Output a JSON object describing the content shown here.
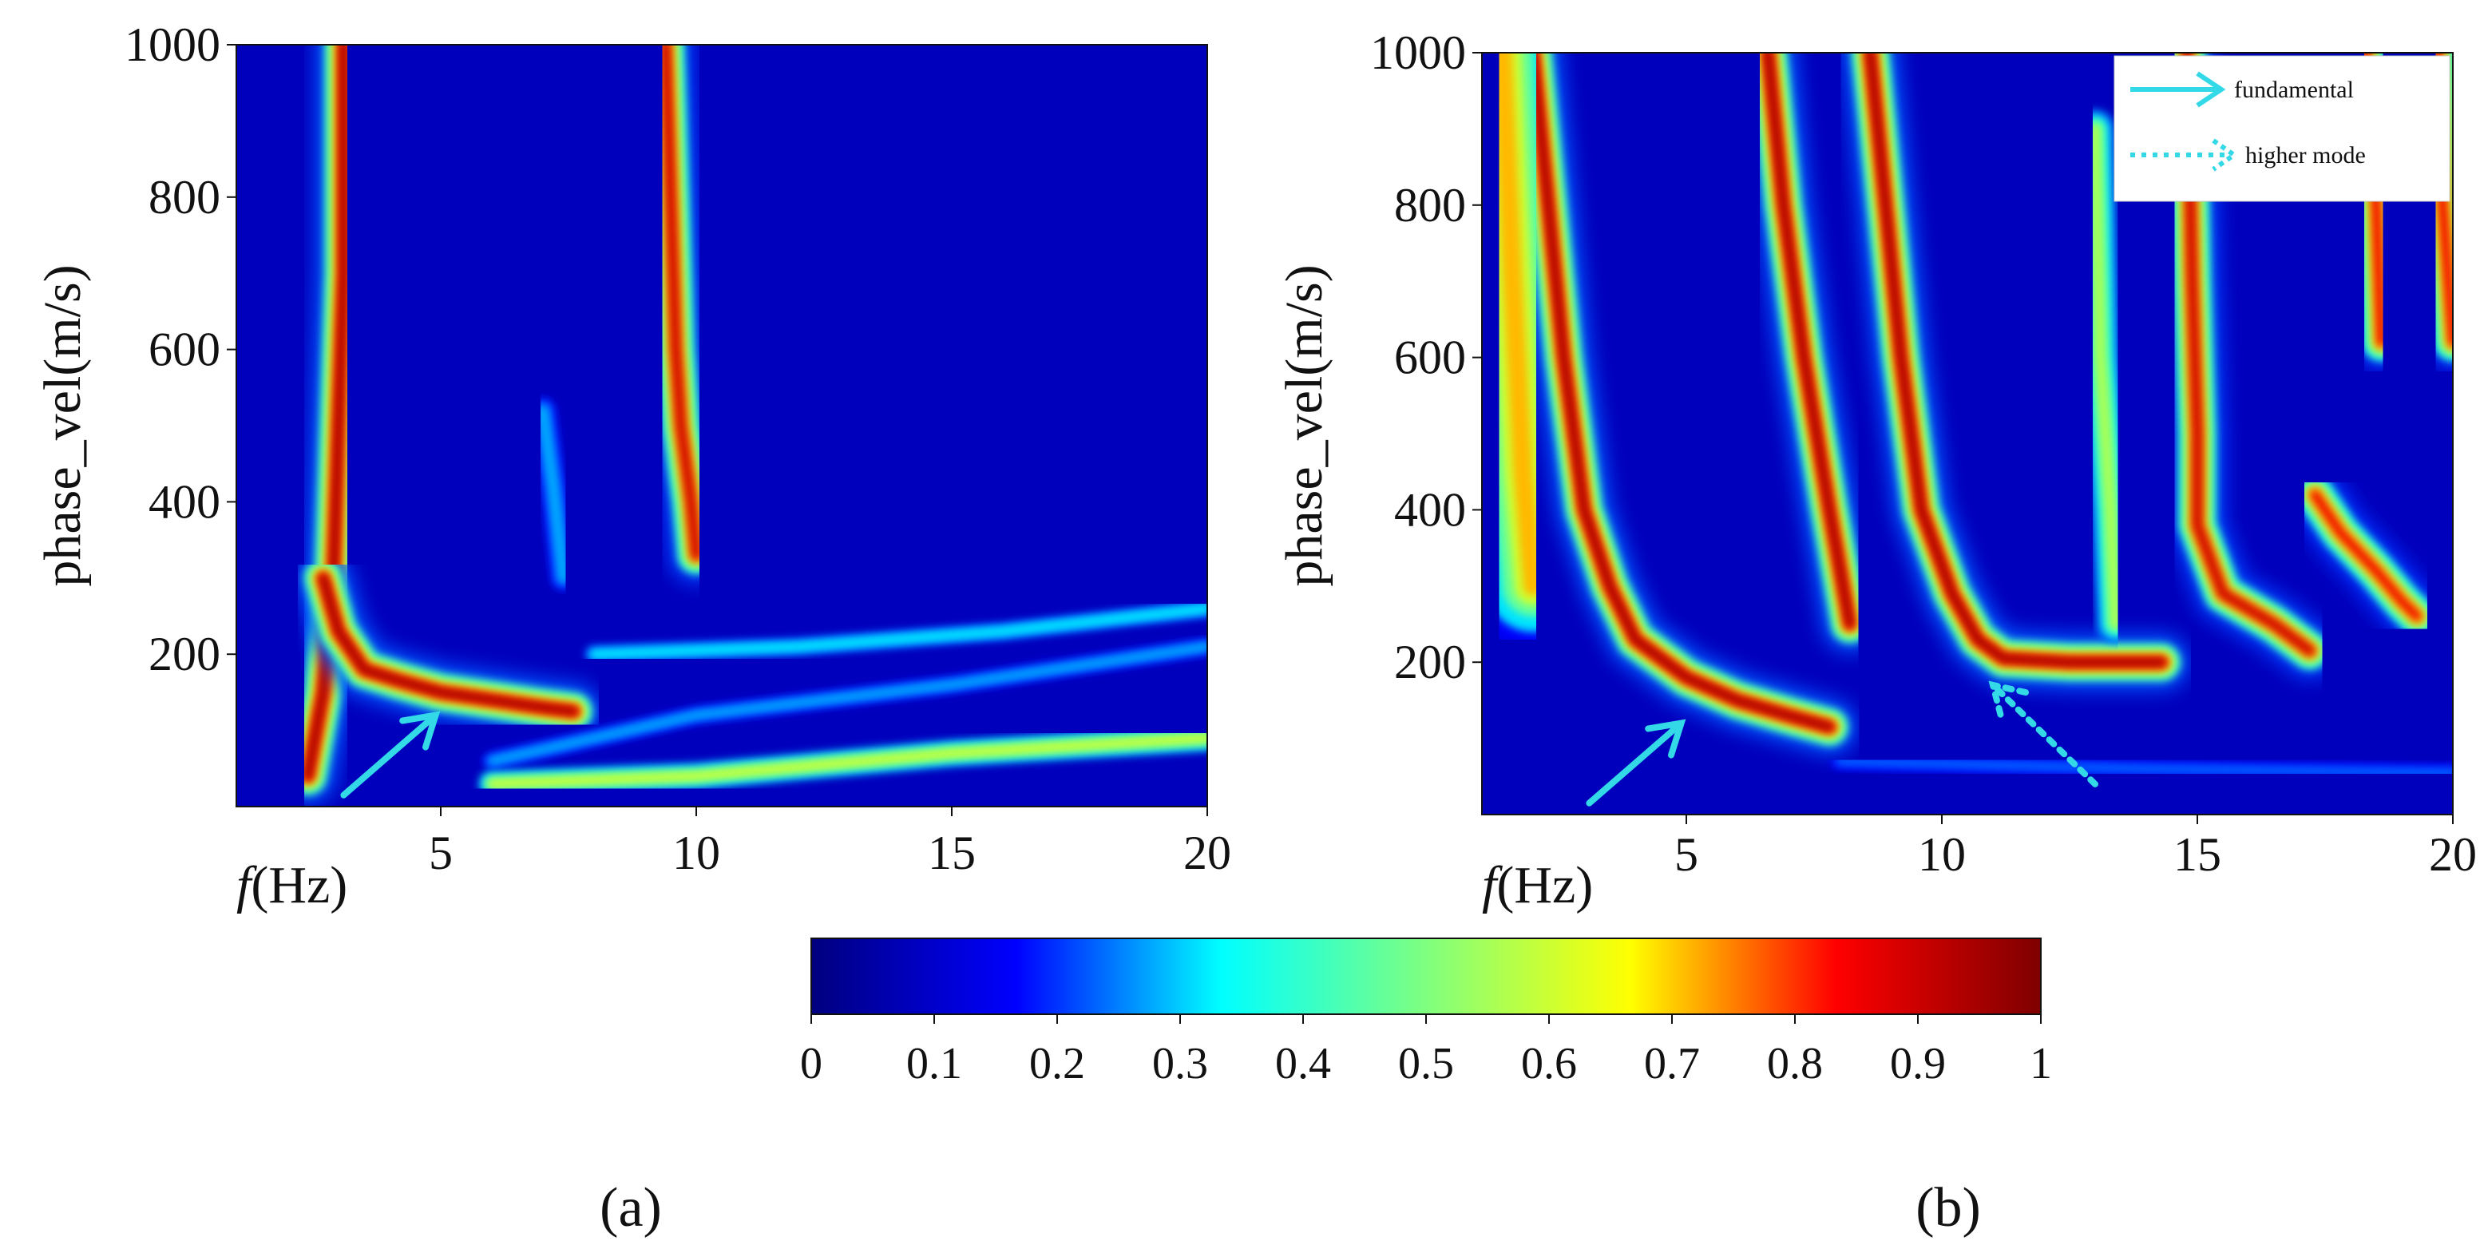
{
  "chart_data": [
    {
      "type": "heatmap",
      "panel_label": "(a)",
      "xlabel_italic": "f",
      "xlabel_rest": "(Hz)",
      "ylabel": "phase_vel(m/s)",
      "xlim": [
        1,
        20
      ],
      "ylim": [
        0,
        1000
      ],
      "xticks": [
        5,
        10,
        15,
        20
      ],
      "yticks": [
        200,
        400,
        600,
        800,
        1000
      ],
      "background_value": 0.08,
      "ridges": [
        {
          "mode": "fundamental",
          "strength": 1.0,
          "points": [
            [
              2.4,
              40
            ],
            [
              2.7,
              150
            ],
            [
              2.9,
              300
            ],
            [
              3.0,
              500
            ],
            [
              3.1,
              700
            ],
            [
              3.1,
              1000
            ]
          ]
        },
        {
          "mode": "fundamental",
          "strength": 1.0,
          "points": [
            [
              2.7,
              300
            ],
            [
              3.0,
              230
            ],
            [
              3.5,
              180
            ],
            [
              4.2,
              165
            ],
            [
              5.0,
              150
            ],
            [
              6.0,
              140
            ],
            [
              7.0,
              130
            ],
            [
              7.6,
              125
            ]
          ]
        },
        {
          "mode": "higher",
          "strength": 0.95,
          "points": [
            [
              9.4,
              1000
            ],
            [
              9.5,
              800
            ],
            [
              9.6,
              600
            ],
            [
              9.7,
              500
            ],
            [
              9.9,
              400
            ],
            [
              10.0,
              330
            ]
          ]
        },
        {
          "mode": "higher",
          "strength": 0.3,
          "points": [
            [
              7.0,
              520
            ],
            [
              7.2,
              420
            ],
            [
              7.4,
              300
            ]
          ]
        },
        {
          "mode": "noise",
          "strength": 0.3,
          "points": [
            [
              6.0,
              60
            ],
            [
              10.0,
              120
            ],
            [
              15.0,
              160
            ],
            [
              20.0,
              210
            ]
          ]
        },
        {
          "mode": "noise",
          "strength": 0.65,
          "points": [
            [
              6.0,
              30
            ],
            [
              10.0,
              40
            ],
            [
              15.0,
              70
            ],
            [
              20.0,
              90
            ]
          ]
        },
        {
          "mode": "noise",
          "strength": 0.35,
          "points": [
            [
              8.0,
              200
            ],
            [
              12.0,
              210
            ],
            [
              16.0,
              230
            ],
            [
              20.0,
              260
            ]
          ]
        }
      ],
      "arrows": [
        {
          "style": "solid",
          "from": [
            3.1,
            15
          ],
          "to": [
            4.9,
            120
          ]
        }
      ]
    },
    {
      "type": "heatmap",
      "panel_label": "(b)",
      "xlabel_italic": "f",
      "xlabel_rest": "(Hz)",
      "ylabel": "phase_vel(m/s)",
      "xlim": [
        1,
        20
      ],
      "ylim": [
        0,
        1000
      ],
      "xticks": [
        5,
        10,
        15,
        20
      ],
      "yticks": [
        200,
        400,
        600,
        800,
        1000
      ],
      "background_value": 0.08,
      "ridges": [
        {
          "mode": "fundamental",
          "strength": 1.0,
          "points": [
            [
              2.0,
              1000
            ],
            [
              2.3,
              800
            ],
            [
              2.6,
              600
            ],
            [
              3.0,
              400
            ],
            [
              3.5,
              300
            ],
            [
              4.0,
              230
            ],
            [
              5.0,
              180
            ],
            [
              6.0,
              150
            ],
            [
              7.0,
              130
            ],
            [
              7.8,
              115
            ]
          ]
        },
        {
          "mode": "broad",
          "strength": 0.75,
          "points": [
            [
              1.4,
              1000
            ],
            [
              1.6,
              700
            ],
            [
              1.8,
              450
            ],
            [
              2.0,
              300
            ]
          ]
        },
        {
          "mode": "higher",
          "strength": 1.0,
          "points": [
            [
              6.6,
              1000
            ],
            [
              6.9,
              800
            ],
            [
              7.3,
              600
            ],
            [
              7.8,
              400
            ],
            [
              8.2,
              250
            ]
          ]
        },
        {
          "mode": "higher",
          "strength": 1.0,
          "points": [
            [
              8.6,
              1000
            ],
            [
              8.9,
              800
            ],
            [
              9.2,
              600
            ],
            [
              9.6,
              400
            ],
            [
              10.2,
              290
            ],
            [
              10.7,
              230
            ],
            [
              11.2,
              205
            ],
            [
              12.5,
              200
            ],
            [
              14.3,
              200
            ]
          ]
        },
        {
          "mode": "higher",
          "strength": 0.95,
          "points": [
            [
              14.8,
              1000
            ],
            [
              14.9,
              700
            ],
            [
              15.0,
              500
            ],
            [
              15.0,
              380
            ],
            [
              15.5,
              290
            ],
            [
              16.5,
              250
            ],
            [
              17.2,
              215
            ]
          ]
        },
        {
          "mode": "higher",
          "strength": 0.9,
          "points": [
            [
              17.3,
              420
            ],
            [
              17.8,
              370
            ],
            [
              18.5,
              320
            ],
            [
              19.0,
              280
            ],
            [
              19.3,
              260
            ]
          ]
        },
        {
          "mode": "higher",
          "strength": 0.9,
          "points": [
            [
              18.3,
              1000
            ],
            [
              18.5,
              800
            ],
            [
              18.6,
              620
            ]
          ]
        },
        {
          "mode": "higher",
          "strength": 0.9,
          "points": [
            [
              19.7,
              1000
            ],
            [
              19.8,
              800
            ],
            [
              20.0,
              620
            ]
          ]
        },
        {
          "mode": "higher",
          "strength": 0.6,
          "points": [
            [
              13.0,
              900
            ],
            [
              13.1,
              600
            ],
            [
              13.3,
              400
            ],
            [
              13.4,
              250
            ]
          ]
        },
        {
          "mode": "noise",
          "strength": 0.25,
          "points": [
            [
              8.0,
              70
            ],
            [
              14.0,
              60
            ],
            [
              20.0,
              55
            ]
          ]
        }
      ],
      "arrows": [
        {
          "style": "solid",
          "from": [
            3.1,
            15
          ],
          "to": [
            4.9,
            120
          ]
        },
        {
          "style": "dotted",
          "from": [
            13.0,
            40
          ],
          "to": [
            11.0,
            170
          ]
        }
      ],
      "legend": {
        "position": "top-right",
        "entries": [
          {
            "label": "fundamental",
            "style": "solid"
          },
          {
            "label": "higher mode",
            "style": "dotted"
          }
        ]
      }
    }
  ],
  "colorbar": {
    "min": 0,
    "max": 1,
    "ticks": [
      "0",
      "0.1",
      "0.2",
      "0.3",
      "0.4",
      "0.5",
      "0.6",
      "0.7",
      "0.8",
      "0.9",
      "1"
    ],
    "colors": [
      "#00007f",
      "#0000ff",
      "#00ffff",
      "#7fff7f",
      "#ffff00",
      "#ff0000",
      "#7f0000"
    ]
  },
  "colors": {
    "arrow": "#33d9e6",
    "axis": "#111111"
  }
}
